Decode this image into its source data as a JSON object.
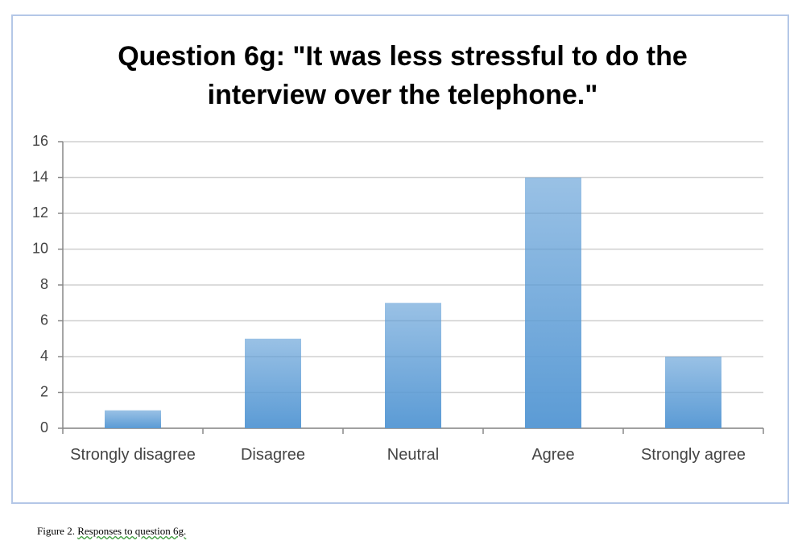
{
  "chart_data": {
    "type": "bar",
    "title": "Question 6g: \"It was less stressful to do the interview over the telephone.\"",
    "categories": [
      "Strongly disagree",
      "Disagree",
      "Neutral",
      "Agree",
      "Strongly agree"
    ],
    "values": [
      1,
      5,
      7,
      14,
      4
    ],
    "color": "#5b9bd5",
    "ylim": [
      0,
      16
    ],
    "yticks": [
      0,
      2,
      4,
      6,
      8,
      10,
      12,
      14,
      16
    ],
    "grid": true
  },
  "caption": {
    "label": "Figure 2.",
    "text": "Responses to question 6g."
  }
}
